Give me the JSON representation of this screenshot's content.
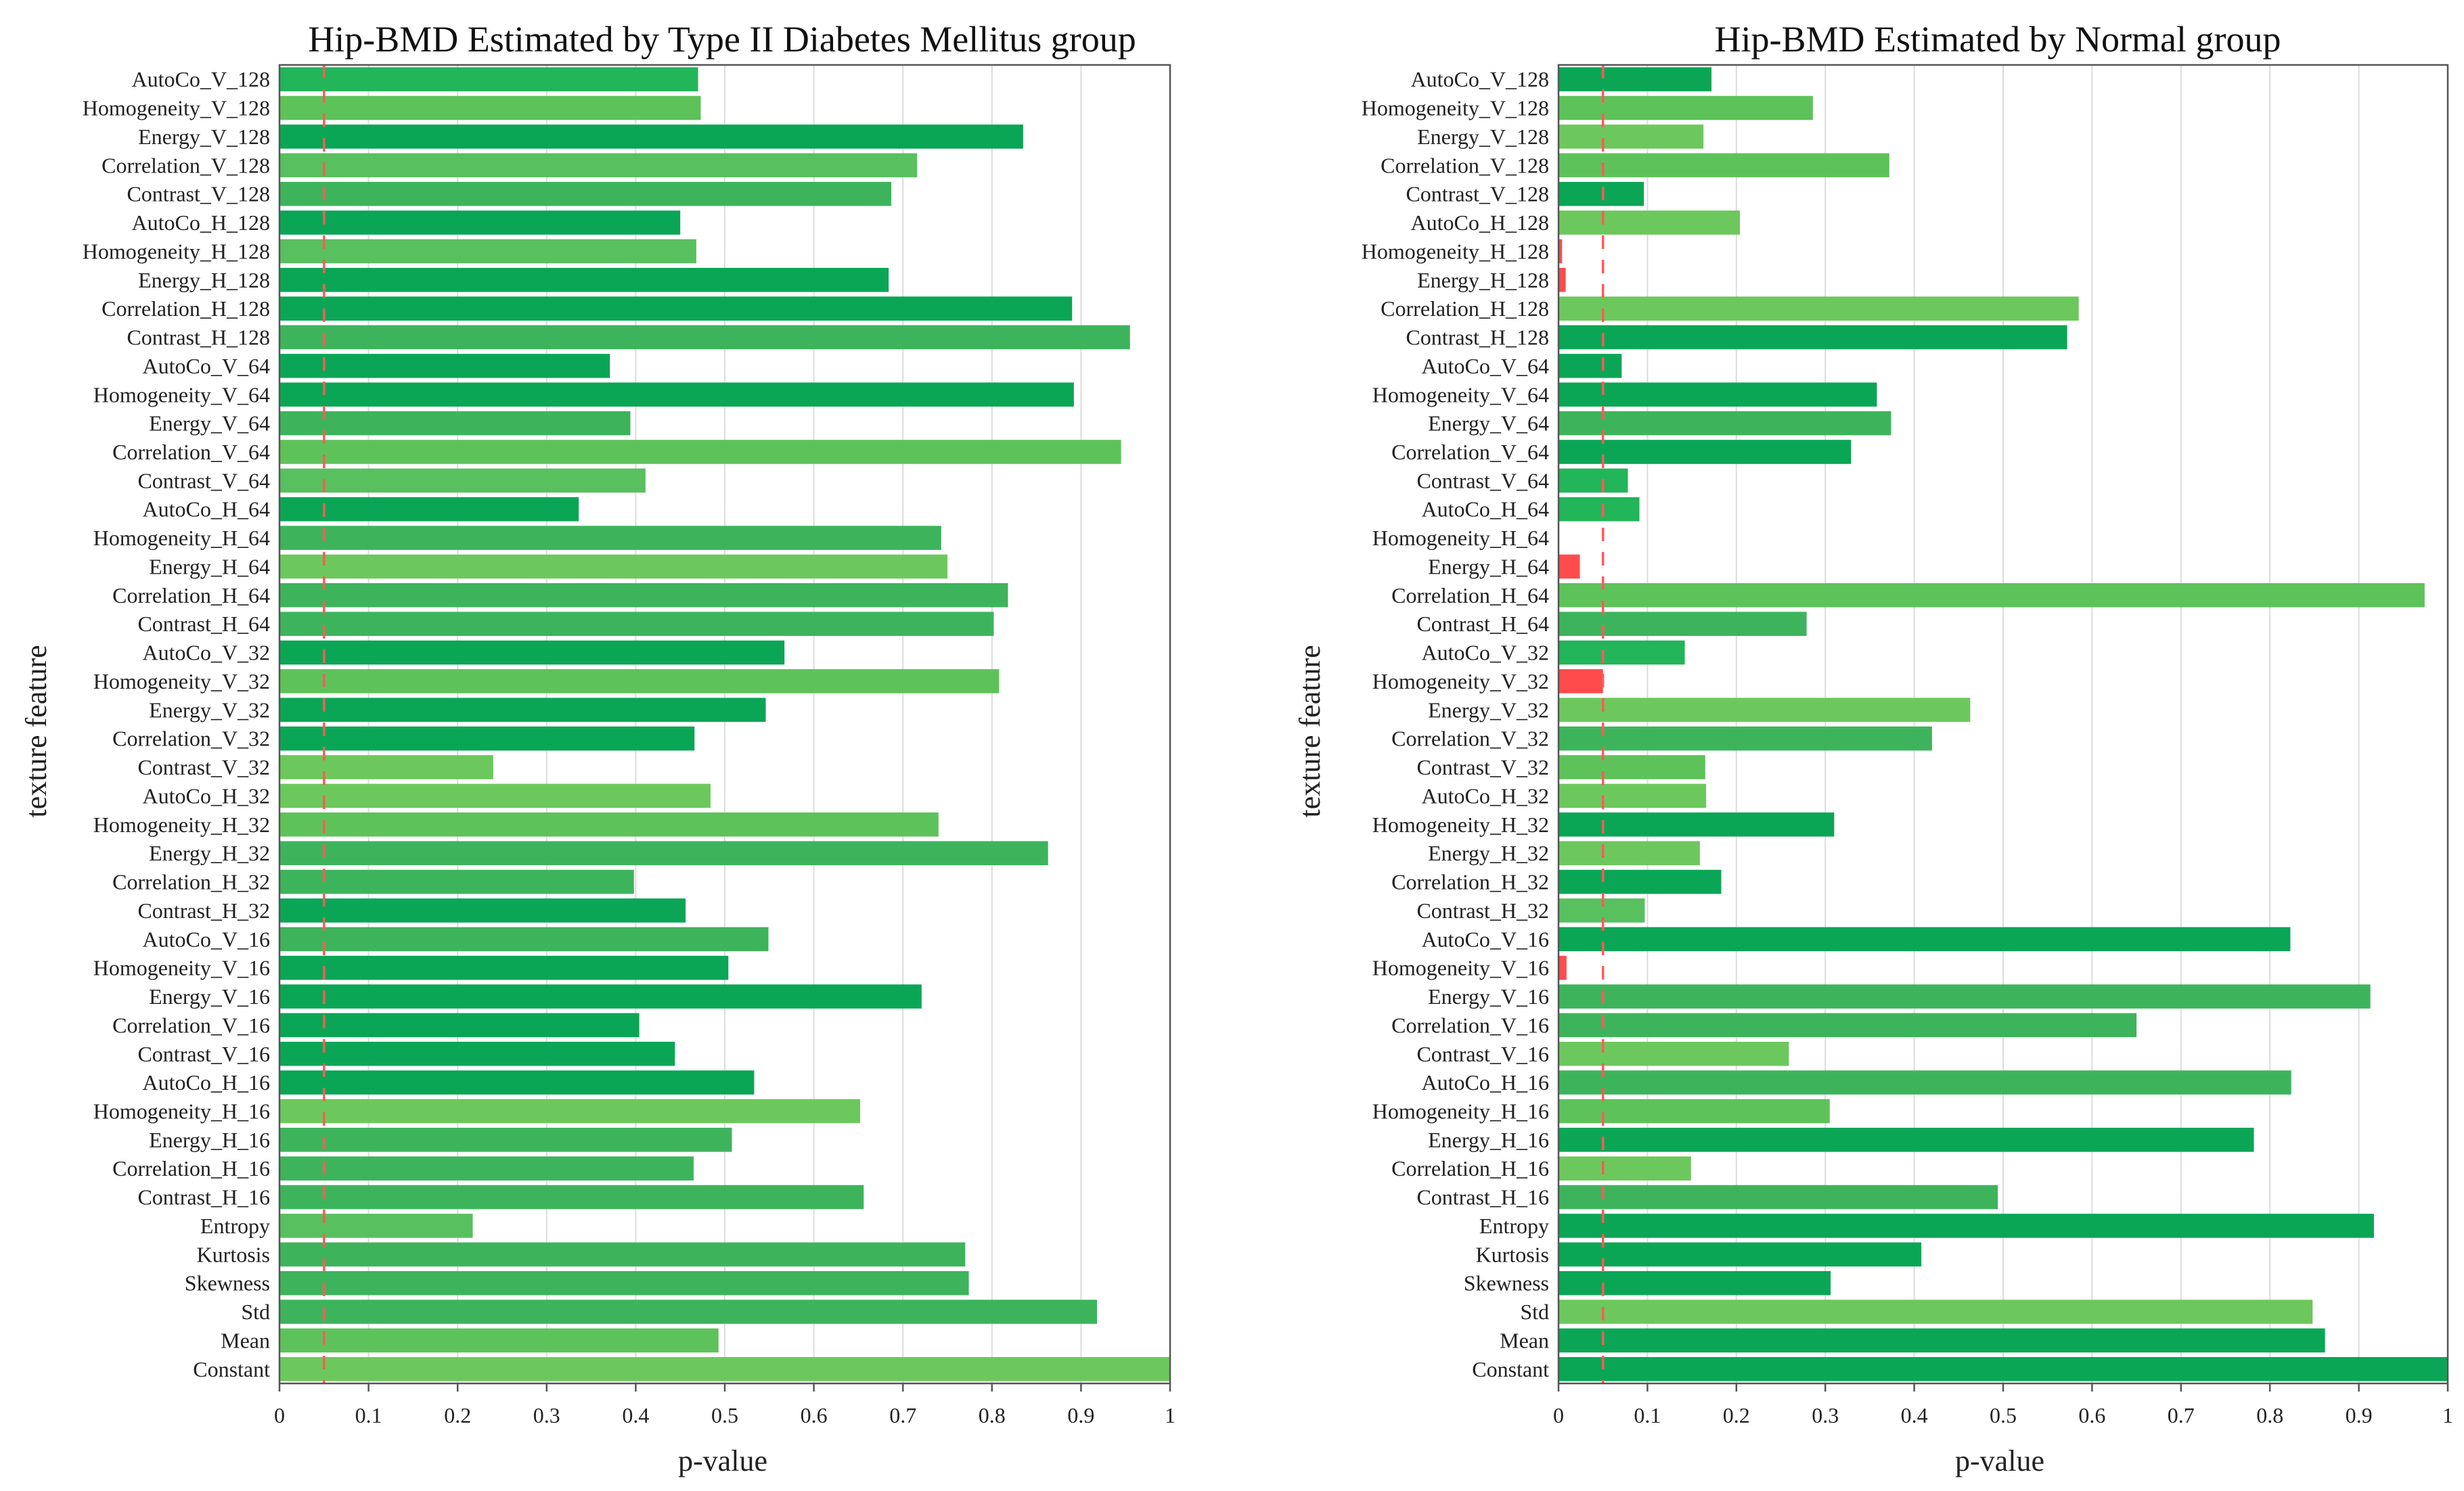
{
  "chart_data": [
    {
      "type": "bar",
      "orientation": "horizontal",
      "title": "Hip-BMD Estimated by Type II Diabetes Mellitus group",
      "xlabel": "p-value",
      "ylabel": "texture feature",
      "xlim": [
        0,
        1
      ],
      "xticks": [
        "0",
        "0.1",
        "0.2",
        "0.3",
        "0.4",
        "0.5",
        "0.6",
        "0.7",
        "0.8",
        "0.9",
        "1"
      ],
      "threshold": 0.05,
      "grid": "vertical",
      "categories": [
        "AutoCo_V_128",
        "Homogeneity_V_128",
        "Energy_V_128",
        "Correlation_V_128",
        "Contrast_V_128",
        "AutoCo_H_128",
        "Homogeneity_H_128",
        "Energy_H_128",
        "Correlation_H_128",
        "Contrast_H_128",
        "AutoCo_V_64",
        "Homogeneity_V_64",
        "Energy_V_64",
        "Correlation_V_64",
        "Contrast_V_64",
        "AutoCo_H_64",
        "Homogeneity_H_64",
        "Energy_H_64",
        "Correlation_H_64",
        "Contrast_H_64",
        "AutoCo_V_32",
        "Homogeneity_V_32",
        "Energy_V_32",
        "Correlation_V_32",
        "Contrast_V_32",
        "AutoCo_H_32",
        "Homogeneity_H_32",
        "Energy_H_32",
        "Correlation_H_32",
        "Contrast_H_32",
        "AutoCo_V_16",
        "Homogeneity_V_16",
        "Energy_V_16",
        "Correlation_V_16",
        "Contrast_V_16",
        "AutoCo_H_16",
        "Homogeneity_H_16",
        "Energy_H_16",
        "Correlation_H_16",
        "Contrast_H_16",
        "Entropy",
        "Kurtosis",
        "Skewness",
        "Std",
        "Mean",
        "Constant"
      ],
      "values": [
        0.47,
        0.473,
        0.835,
        0.716,
        0.687,
        0.45,
        0.468,
        0.684,
        0.89,
        0.955,
        0.371,
        0.892,
        0.394,
        0.945,
        0.411,
        0.336,
        0.743,
        0.75,
        0.818,
        0.802,
        0.567,
        0.808,
        0.546,
        0.466,
        0.24,
        0.484,
        0.74,
        0.863,
        0.398,
        0.456,
        0.549,
        0.504,
        0.721,
        0.404,
        0.444,
        0.533,
        0.652,
        0.508,
        0.465,
        0.656,
        0.217,
        0.77,
        0.774,
        0.918,
        0.493,
        1.0
      ],
      "bar_colors": [
        "#22b55a",
        "#5ec25a",
        "#0aa655",
        "#58c05e",
        "#3db45c",
        "#0aa655",
        "#58c05e",
        "#0aa655",
        "#0aa655",
        "#3db45c",
        "#0aa655",
        "#0aa655",
        "#3db45c",
        "#5ec25a",
        "#58c05e",
        "#0aa655",
        "#3db45c",
        "#6cc85c",
        "#3db45c",
        "#3db45c",
        "#0aa655",
        "#5ec25a",
        "#0aa655",
        "#0aa655",
        "#6cc85c",
        "#6cc85c",
        "#5ec25a",
        "#3db45c",
        "#3db45c",
        "#0aa655",
        "#3db45c",
        "#0aa655",
        "#0aa655",
        "#0aa655",
        "#0aa655",
        "#0aa655",
        "#6cc85c",
        "#3db45c",
        "#3db45c",
        "#3db45c",
        "#58c05e",
        "#3db45c",
        "#3db45c",
        "#3db45c",
        "#5ec25a",
        "#6cc85c"
      ]
    },
    {
      "type": "bar",
      "orientation": "horizontal",
      "title": "Hip-BMD Estimated by Normal group",
      "xlabel": "p-value",
      "ylabel": "texture feature",
      "xlim": [
        0,
        1
      ],
      "xticks": [
        "0",
        "0.1",
        "0.2",
        "0.3",
        "0.4",
        "0.5",
        "0.6",
        "0.7",
        "0.8",
        "0.9",
        "1"
      ],
      "threshold": 0.05,
      "grid": "vertical",
      "categories": [
        "AutoCo_V_128",
        "Homogeneity_V_128",
        "Energy_V_128",
        "Correlation_V_128",
        "Contrast_V_128",
        "AutoCo_H_128",
        "Homogeneity_H_128",
        "Energy_H_128",
        "Correlation_H_128",
        "Contrast_H_128",
        "AutoCo_V_64",
        "Homogeneity_V_64",
        "Energy_V_64",
        "Correlation_V_64",
        "Contrast_V_64",
        "AutoCo_H_64",
        "Homogeneity_H_64",
        "Energy_H_64",
        "Correlation_H_64",
        "Contrast_H_64",
        "AutoCo_V_32",
        "Homogeneity_V_32",
        "Energy_V_32",
        "Correlation_V_32",
        "Contrast_V_32",
        "AutoCo_H_32",
        "Homogeneity_H_32",
        "Energy_H_32",
        "Correlation_H_32",
        "Contrast_H_32",
        "AutoCo_V_16",
        "Homogeneity_V_16",
        "Energy_V_16",
        "Correlation_V_16",
        "Contrast_V_16",
        "AutoCo_H_16",
        "Homogeneity_H_16",
        "Energy_H_16",
        "Correlation_H_16",
        "Contrast_H_16",
        "Entropy",
        "Kurtosis",
        "Skewness",
        "Std",
        "Mean",
        "Constant"
      ],
      "values": [
        0.172,
        0.286,
        0.163,
        0.372,
        0.096,
        0.204,
        0.004,
        0.008,
        0.585,
        0.572,
        0.071,
        0.358,
        0.374,
        0.329,
        0.078,
        0.091,
        0.0,
        0.024,
        0.974,
        0.279,
        0.142,
        0.05,
        0.463,
        0.42,
        0.165,
        0.166,
        0.31,
        0.159,
        0.183,
        0.097,
        0.823,
        0.009,
        0.913,
        0.65,
        0.259,
        0.824,
        0.305,
        0.782,
        0.149,
        0.494,
        0.917,
        0.408,
        0.306,
        0.848,
        0.862,
        1.0
      ],
      "bar_colors": [
        "#0aa655",
        "#5ec25a",
        "#6cc85c",
        "#5ec25a",
        "#0aa655",
        "#6cc85c",
        "#ff4b4b",
        "#ff4b4b",
        "#6cc85c",
        "#0aa655",
        "#0aa655",
        "#0aa655",
        "#3db45c",
        "#0aa655",
        "#22b55a",
        "#22b55a",
        "#ffffff",
        "#ff4b4b",
        "#5ec25a",
        "#3db45c",
        "#22b55a",
        "#ff4b4b",
        "#6cc85c",
        "#3db45c",
        "#5ec25a",
        "#6cc85c",
        "#0aa655",
        "#6cc85c",
        "#0aa655",
        "#58c05e",
        "#0aa655",
        "#ff4b4b",
        "#3db45c",
        "#3db45c",
        "#6cc85c",
        "#3db45c",
        "#5ec25a",
        "#0aa655",
        "#6cc85c",
        "#3db45c",
        "#0aa655",
        "#0aa655",
        "#0aa655",
        "#6cc85c",
        "#0aa655",
        "#0aa655"
      ]
    }
  ]
}
